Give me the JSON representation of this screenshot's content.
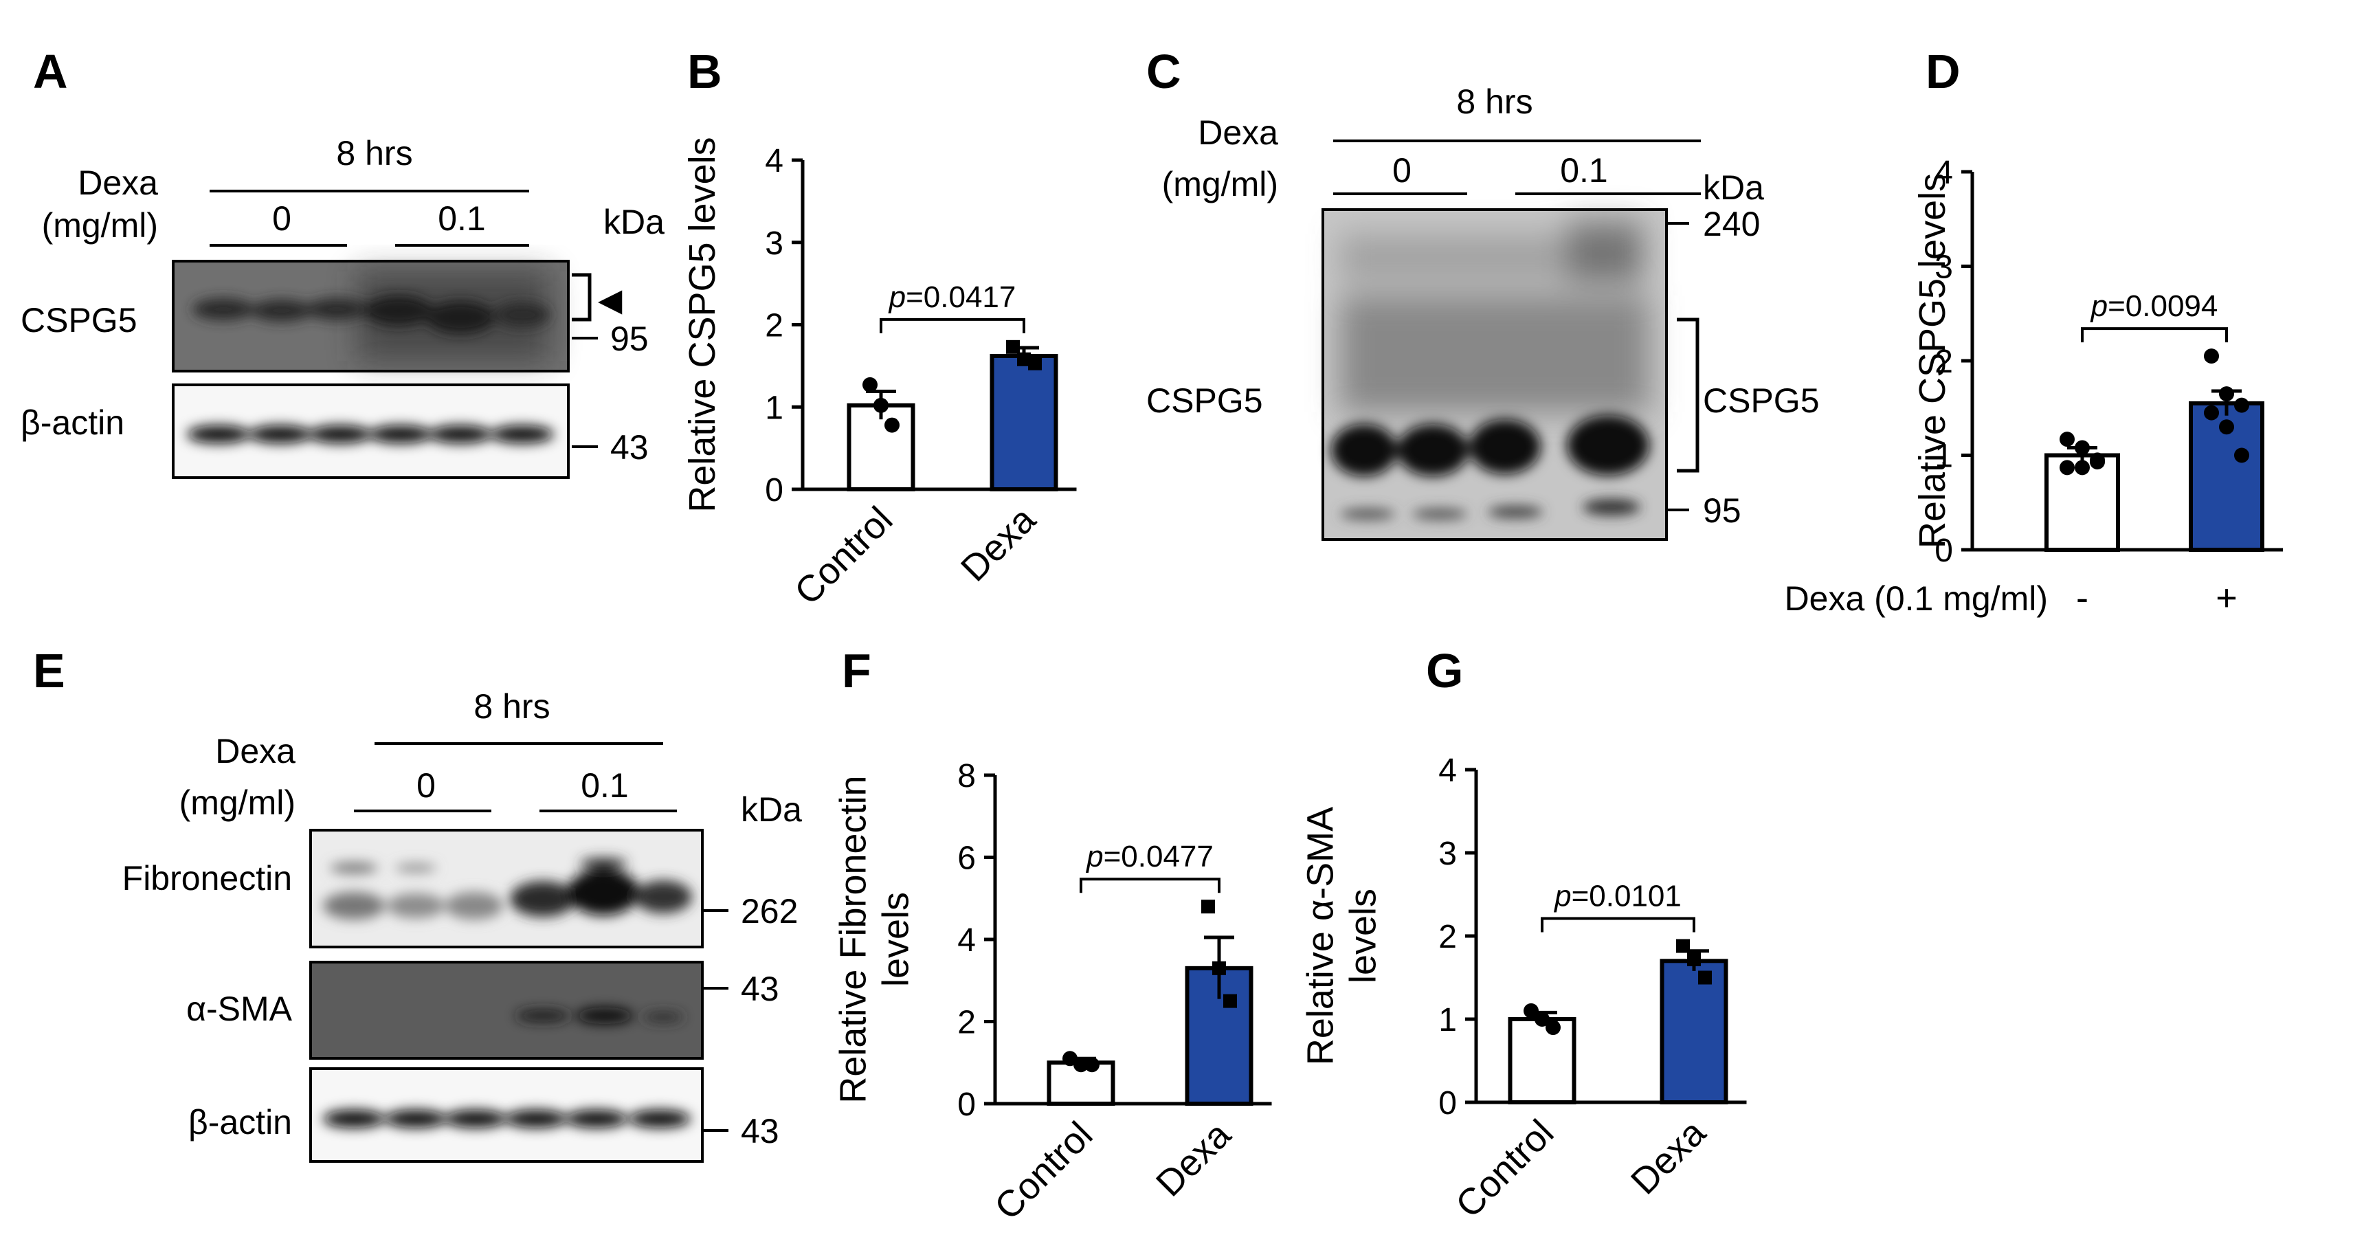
{
  "panel_labels": [
    "A",
    "B",
    "C",
    "D",
    "E",
    "F",
    "G"
  ],
  "blot_labels": {
    "time": "8 hrs",
    "treatment_line1": "Dexa",
    "treatment_line2": "(mg/ml)",
    "dose_low": "0",
    "dose_high": "0.1",
    "unit": "kDa",
    "cspg5": "CSPG5",
    "beta_actin": "β-actin",
    "fibronectin": "Fibronectin",
    "alpha_sma": "α-SMA",
    "marker_95": "95",
    "marker_43": "43",
    "marker_240": "240",
    "marker_262": "262",
    "arrowhead": "◀"
  },
  "chart_data": [
    {
      "panel": "B",
      "type": "bar",
      "categories": [
        "Control",
        "Dexa"
      ],
      "values": [
        1.02,
        1.62
      ],
      "errors": [
        0.17,
        0.1
      ],
      "points": [
        [
          1.27,
          1.02,
          0.78
        ],
        [
          1.73,
          1.58,
          1.53
        ]
      ],
      "ylabel": "Relative CSPG5 levels",
      "ylim": [
        0,
        4
      ],
      "yticks": [
        0,
        1,
        2,
        3,
        4
      ],
      "p_value": "p=0.0417",
      "colors": [
        "#ffffff",
        "#2148a0"
      ]
    },
    {
      "panel": "D",
      "type": "bar",
      "categories": [
        "-",
        "+"
      ],
      "values": [
        1.0,
        1.55
      ],
      "errors": [
        0.08,
        0.13
      ],
      "points": [
        [
          1.17,
          1.08,
          0.95,
          0.87,
          0.87,
          0.93
        ],
        [
          2.05,
          1.65,
          1.53,
          1.45,
          1.3,
          1.0
        ]
      ],
      "ylabel": "Relative CSPG5 levels",
      "xlabel": "Dexa (0.1 mg/ml)",
      "ylim": [
        0,
        4
      ],
      "yticks": [
        0,
        1,
        2,
        3,
        4
      ],
      "p_value": "p=0.0094",
      "colors": [
        "#ffffff",
        "#2148a0"
      ]
    },
    {
      "panel": "F",
      "type": "bar",
      "categories": [
        "Control",
        "Dexa"
      ],
      "values": [
        1.0,
        3.3
      ],
      "errors": [
        0.1,
        0.75
      ],
      "points": [
        [
          1.1,
          0.95,
          0.95
        ],
        [
          4.8,
          3.3,
          2.5
        ]
      ],
      "ylabel": "Relative Fibronectin levels",
      "ylim": [
        0,
        8
      ],
      "yticks": [
        0,
        2,
        4,
        6,
        8
      ],
      "p_value": "p=0.0477",
      "colors": [
        "#ffffff",
        "#2148a0"
      ]
    },
    {
      "panel": "G",
      "type": "bar",
      "categories": [
        "Control",
        "Dexa"
      ],
      "values": [
        1.0,
        1.7
      ],
      "errors": [
        0.08,
        0.12
      ],
      "points": [
        [
          1.1,
          1.0,
          0.9
        ],
        [
          1.88,
          1.72,
          1.5
        ]
      ],
      "ylabel": "Relative α-SMA levels",
      "ylim": [
        0,
        4
      ],
      "yticks": [
        0,
        1,
        2,
        3,
        4
      ],
      "p_value": "p=0.0101",
      "colors": [
        "#ffffff",
        "#2148a0"
      ]
    }
  ]
}
